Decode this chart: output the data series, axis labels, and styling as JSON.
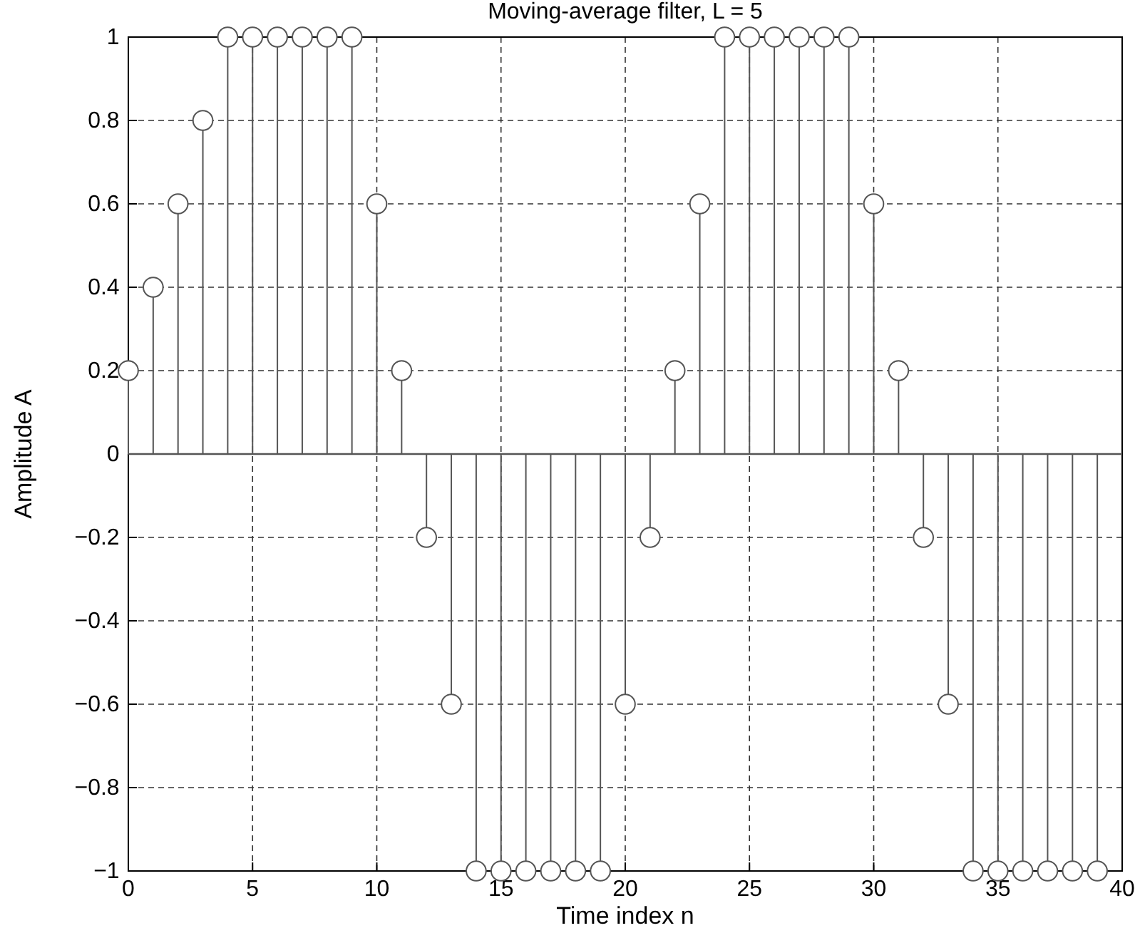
{
  "chart_data": {
    "type": "lollipop",
    "title": "Moving-average filter, L = 5",
    "xlabel": "Time index n",
    "ylabel": "Amplitude A",
    "x": [
      0,
      1,
      2,
      3,
      4,
      5,
      6,
      7,
      8,
      9,
      10,
      11,
      12,
      13,
      14,
      15,
      16,
      17,
      18,
      19,
      20,
      21,
      22,
      23,
      24,
      25,
      26,
      27,
      28,
      29,
      30,
      31,
      32,
      33,
      34,
      35,
      36,
      37,
      38,
      39
    ],
    "series": [
      {
        "color": "#555555",
        "values": [
          0.2,
          0.4,
          0.6,
          0.8,
          1,
          1,
          1,
          1,
          1,
          1,
          0.6,
          0.2,
          -0.2,
          -0.6,
          -1,
          -1,
          -1,
          -1,
          -1,
          -1,
          -0.6,
          -0.2,
          0.2,
          0.6,
          1,
          1,
          1,
          1,
          1,
          1,
          0.6,
          0.2,
          -0.2,
          -0.6,
          -1,
          -1,
          -1,
          -1,
          -1,
          -1
        ]
      }
    ],
    "xlim": [
      0,
      40
    ],
    "xticks": [
      0,
      5,
      10,
      15,
      20,
      25,
      30,
      35,
      40
    ],
    "ylim": [
      -1,
      1
    ],
    "yticks": [
      {
        "value": -1,
        "label": "−1"
      },
      {
        "value": -0.8,
        "label": "−0.8"
      },
      {
        "value": -0.6,
        "label": "−0.6"
      },
      {
        "value": -0.4,
        "label": "−0.4"
      },
      {
        "value": -0.2,
        "label": "−0.2"
      },
      0,
      0.2,
      0.4,
      0.6,
      0.8,
      1
    ],
    "grid": true,
    "marker": "circle"
  }
}
